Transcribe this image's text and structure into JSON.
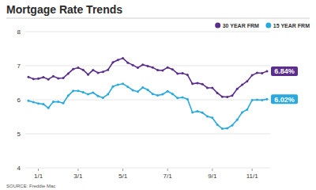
{
  "chart_data": {
    "type": "line",
    "title": "Mortgage Rate Trends",
    "source": "SOURCE: Freddie Mac",
    "categories": [
      null,
      null,
      "1/1",
      null,
      null,
      null,
      null,
      null,
      null,
      null,
      "3/1",
      null,
      null,
      null,
      null,
      null,
      null,
      null,
      null,
      "5/1",
      null,
      null,
      null,
      null,
      null,
      null,
      null,
      null,
      "7/1",
      null,
      null,
      null,
      null,
      null,
      null,
      null,
      null,
      "9/1",
      null,
      null,
      null,
      null,
      null,
      null,
      null,
      "11/1",
      null,
      null,
      null
    ],
    "series": [
      {
        "name": "30 YEAR FRM",
        "color": "#5b2d8e",
        "marker": "circle",
        "values": [
          6.67,
          6.61,
          6.62,
          6.66,
          6.6,
          6.69,
          6.63,
          6.64,
          6.77,
          6.9,
          6.94,
          6.88,
          6.74,
          6.87,
          6.79,
          6.82,
          6.88,
          7.1,
          7.17,
          7.22,
          7.09,
          7.02,
          6.94,
          7.03,
          6.99,
          6.95,
          6.87,
          6.86,
          6.95,
          6.89,
          6.77,
          6.78,
          6.73,
          6.47,
          6.49,
          6.46,
          6.35,
          6.35,
          6.2,
          6.09,
          6.08,
          6.12,
          6.32,
          6.44,
          6.54,
          6.72,
          6.79,
          6.78,
          6.84
        ],
        "value_labels": [
          null,
          null,
          null,
          null,
          null,
          null,
          null,
          null,
          null,
          null,
          null,
          null,
          null,
          null,
          null,
          null,
          null,
          null,
          null,
          null,
          null,
          null,
          null,
          null,
          null,
          null,
          null,
          null,
          null,
          null,
          null,
          null,
          null,
          null,
          null,
          null,
          null,
          null,
          null,
          null,
          null,
          null,
          null,
          null,
          null,
          null,
          null,
          null,
          "6.84%"
        ]
      },
      {
        "name": "15 YEAR FRM",
        "color": "#29a9e0",
        "marker": "circle",
        "values": [
          5.97,
          5.93,
          5.89,
          5.87,
          5.76,
          5.94,
          5.94,
          5.9,
          6.12,
          6.26,
          6.26,
          6.22,
          6.16,
          6.21,
          6.11,
          6.06,
          6.16,
          6.39,
          6.44,
          6.47,
          6.38,
          6.28,
          6.24,
          6.36,
          6.29,
          6.17,
          6.13,
          6.16,
          6.25,
          6.17,
          6.05,
          6.07,
          6.02,
          5.63,
          5.66,
          5.62,
          5.51,
          5.47,
          5.27,
          5.15,
          5.16,
          5.25,
          5.41,
          5.63,
          5.71,
          5.99,
          6.0,
          5.99,
          6.02
        ],
        "value_labels": [
          null,
          null,
          null,
          null,
          null,
          null,
          null,
          null,
          null,
          null,
          null,
          null,
          null,
          null,
          null,
          null,
          null,
          null,
          null,
          null,
          null,
          null,
          null,
          null,
          null,
          null,
          null,
          null,
          null,
          null,
          null,
          null,
          null,
          null,
          null,
          null,
          null,
          null,
          null,
          null,
          null,
          null,
          null,
          null,
          null,
          null,
          null,
          null,
          "6.02%"
        ]
      }
    ],
    "ylim": [
      4,
      8
    ],
    "yticks": [
      4,
      5,
      6,
      7,
      8
    ],
    "grid": true,
    "legend": "top-right"
  }
}
